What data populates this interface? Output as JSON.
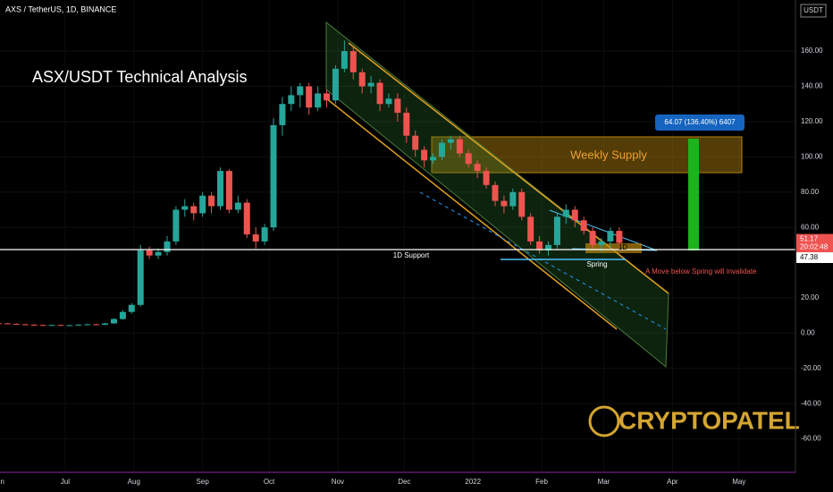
{
  "chart_data": {
    "type": "candlestick",
    "symbol": "AXS / TetherUS, 1D, BINANCE",
    "title": "ASX/USDT Technical Analysis",
    "currency": "USDT",
    "x": [
      0,
      4,
      8,
      12,
      16,
      20,
      24,
      28,
      32,
      36,
      40,
      44,
      48,
      52,
      56,
      60,
      64,
      68,
      72,
      76,
      80,
      84,
      88,
      92,
      96,
      100,
      104,
      108,
      112,
      116,
      120,
      124,
      128,
      132,
      136,
      140,
      144,
      148,
      152,
      156,
      160,
      164,
      168,
      172,
      176,
      180,
      184,
      188,
      192,
      196,
      200,
      204,
      208,
      212,
      216,
      220,
      224,
      228,
      232,
      236,
      240,
      244,
      248,
      252,
      256,
      260,
      264,
      268,
      272,
      276,
      280
    ],
    "open": [
      5.6,
      5.5,
      5.2,
      5.0,
      4.8,
      4.6,
      4.5,
      4.6,
      4.4,
      4.5,
      4.8,
      5.0,
      4.7,
      5.5,
      8,
      12,
      16,
      47,
      44,
      46,
      52,
      70,
      72,
      68,
      78,
      72,
      92,
      70,
      74,
      56,
      52,
      60,
      118,
      130,
      135,
      140,
      128,
      136,
      132,
      150,
      160,
      148,
      140,
      142,
      130,
      133,
      125,
      112,
      104,
      98,
      100,
      108,
      110,
      102,
      96,
      92,
      84,
      75,
      72,
      80,
      66,
      52,
      47,
      50,
      66,
      70,
      64,
      58,
      50,
      52,
      58
    ],
    "high": [
      6,
      5.8,
      5.5,
      5.3,
      5.0,
      4.9,
      4.9,
      4.8,
      4.7,
      5.0,
      5.3,
      5.3,
      5.9,
      8.5,
      13,
      17,
      50,
      49,
      48,
      55,
      72,
      76,
      74,
      80,
      80,
      94,
      93,
      78,
      76,
      60,
      62,
      122,
      134,
      140,
      142,
      142,
      140,
      138,
      152,
      166,
      162,
      150,
      146,
      144,
      136,
      136,
      128,
      115,
      106,
      102,
      110,
      112,
      112,
      104,
      98,
      94,
      86,
      78,
      82,
      82,
      68,
      55,
      52,
      68,
      73,
      72,
      66,
      60,
      54,
      60,
      60
    ],
    "low": [
      5.2,
      5.0,
      4.8,
      4.6,
      4.4,
      4.3,
      4.3,
      4.2,
      4.2,
      4.3,
      4.6,
      4.5,
      4.5,
      5.3,
      7.5,
      11,
      15,
      42,
      42,
      44,
      50,
      66,
      64,
      66,
      68,
      70,
      68,
      68,
      54,
      48,
      50,
      58,
      112,
      126,
      128,
      124,
      126,
      128,
      130,
      148,
      144,
      136,
      136,
      126,
      128,
      120,
      108,
      100,
      94,
      96,
      98,
      104,
      100,
      94,
      88,
      82,
      72,
      68,
      70,
      64,
      50,
      45,
      44,
      48,
      62,
      60,
      56,
      48,
      46,
      48,
      49
    ],
    "close": [
      5.5,
      5.2,
      5.0,
      4.8,
      4.6,
      4.5,
      4.6,
      4.4,
      4.5,
      4.8,
      5.0,
      4.7,
      5.5,
      8,
      12,
      16,
      47,
      44,
      46,
      52,
      70,
      72,
      68,
      78,
      72,
      92,
      70,
      74,
      56,
      52,
      60,
      118,
      130,
      135,
      140,
      128,
      136,
      132,
      150,
      160,
      148,
      140,
      142,
      130,
      133,
      125,
      112,
      104,
      98,
      100,
      108,
      110,
      102,
      96,
      92,
      84,
      75,
      72,
      80,
      66,
      52,
      47,
      50,
      66,
      70,
      64,
      58,
      50,
      52,
      58,
      51.17
    ],
    "up_color": "#26a69a",
    "down_color": "#ef5350",
    "xlim": [
      0.6,
      359.5
    ],
    "xticks": [
      {
        "value": 0,
        "label": "Jun"
      },
      {
        "value": 30,
        "label": "Jul"
      },
      {
        "value": 61,
        "label": "Aug"
      },
      {
        "value": 92,
        "label": "Sep"
      },
      {
        "value": 122,
        "label": "Oct"
      },
      {
        "value": 153,
        "label": "Nov"
      },
      {
        "value": 183,
        "label": "Dec"
      },
      {
        "value": 214,
        "label": "2022"
      },
      {
        "value": 245,
        "label": "Feb"
      },
      {
        "value": 273,
        "label": "Mar"
      },
      {
        "value": 304,
        "label": "Apr"
      },
      {
        "value": 334,
        "label": "May"
      }
    ],
    "ylim": [
      -79,
      189
    ],
    "yticks": [
      {
        "value": -60,
        "label": "-60.00"
      },
      {
        "value": -40,
        "label": "-40.00"
      },
      {
        "value": -20,
        "label": "-20.00"
      },
      {
        "value": 0,
        "label": "0.00"
      },
      {
        "value": 20,
        "label": "20.00"
      },
      {
        "value": 60,
        "label": "60.00"
      },
      {
        "value": 80,
        "label": "80.00"
      },
      {
        "value": 100,
        "label": "100.00"
      },
      {
        "value": 120,
        "label": "120.00"
      },
      {
        "value": 140,
        "label": "140.00"
      },
      {
        "value": 160,
        "label": "160.00"
      }
    ],
    "last_price": 51.17,
    "countdown": "20:02:48",
    "support_price": 47.38,
    "annotations": {
      "weekly_supply": "Weekly Supply",
      "support": "1D Support",
      "spring": "Spring",
      "timeframe": "1D",
      "warning": "A Move below Spring will invalidate",
      "measure": "64.07 (136.40%) 6407",
      "brand": "CRYPTOPATEL"
    }
  }
}
